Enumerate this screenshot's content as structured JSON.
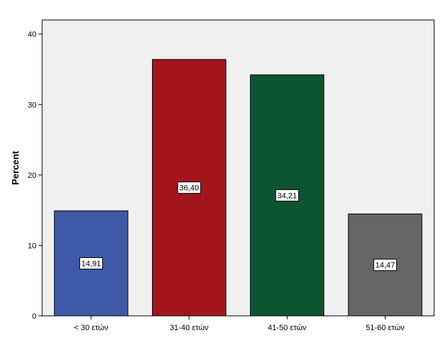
{
  "chart_data": {
    "type": "bar",
    "categories": [
      "< 30 ετών",
      "31-40 ετών",
      "41-50 ετών",
      "51-60 ετών"
    ],
    "values": [
      14.91,
      36.4,
      34.21,
      14.47
    ],
    "data_labels": [
      "14,91",
      "36,40",
      "34,21",
      "14,47"
    ],
    "colors": [
      "#3f5aa8",
      "#a3151c",
      "#0b5530",
      "#666666"
    ],
    "ylabel": "Percent",
    "xlabel": "",
    "ylim": [
      0,
      42
    ],
    "yticks": [
      0,
      10,
      20,
      30,
      40
    ],
    "grid": false,
    "plot_background": "#f0f0f0"
  }
}
